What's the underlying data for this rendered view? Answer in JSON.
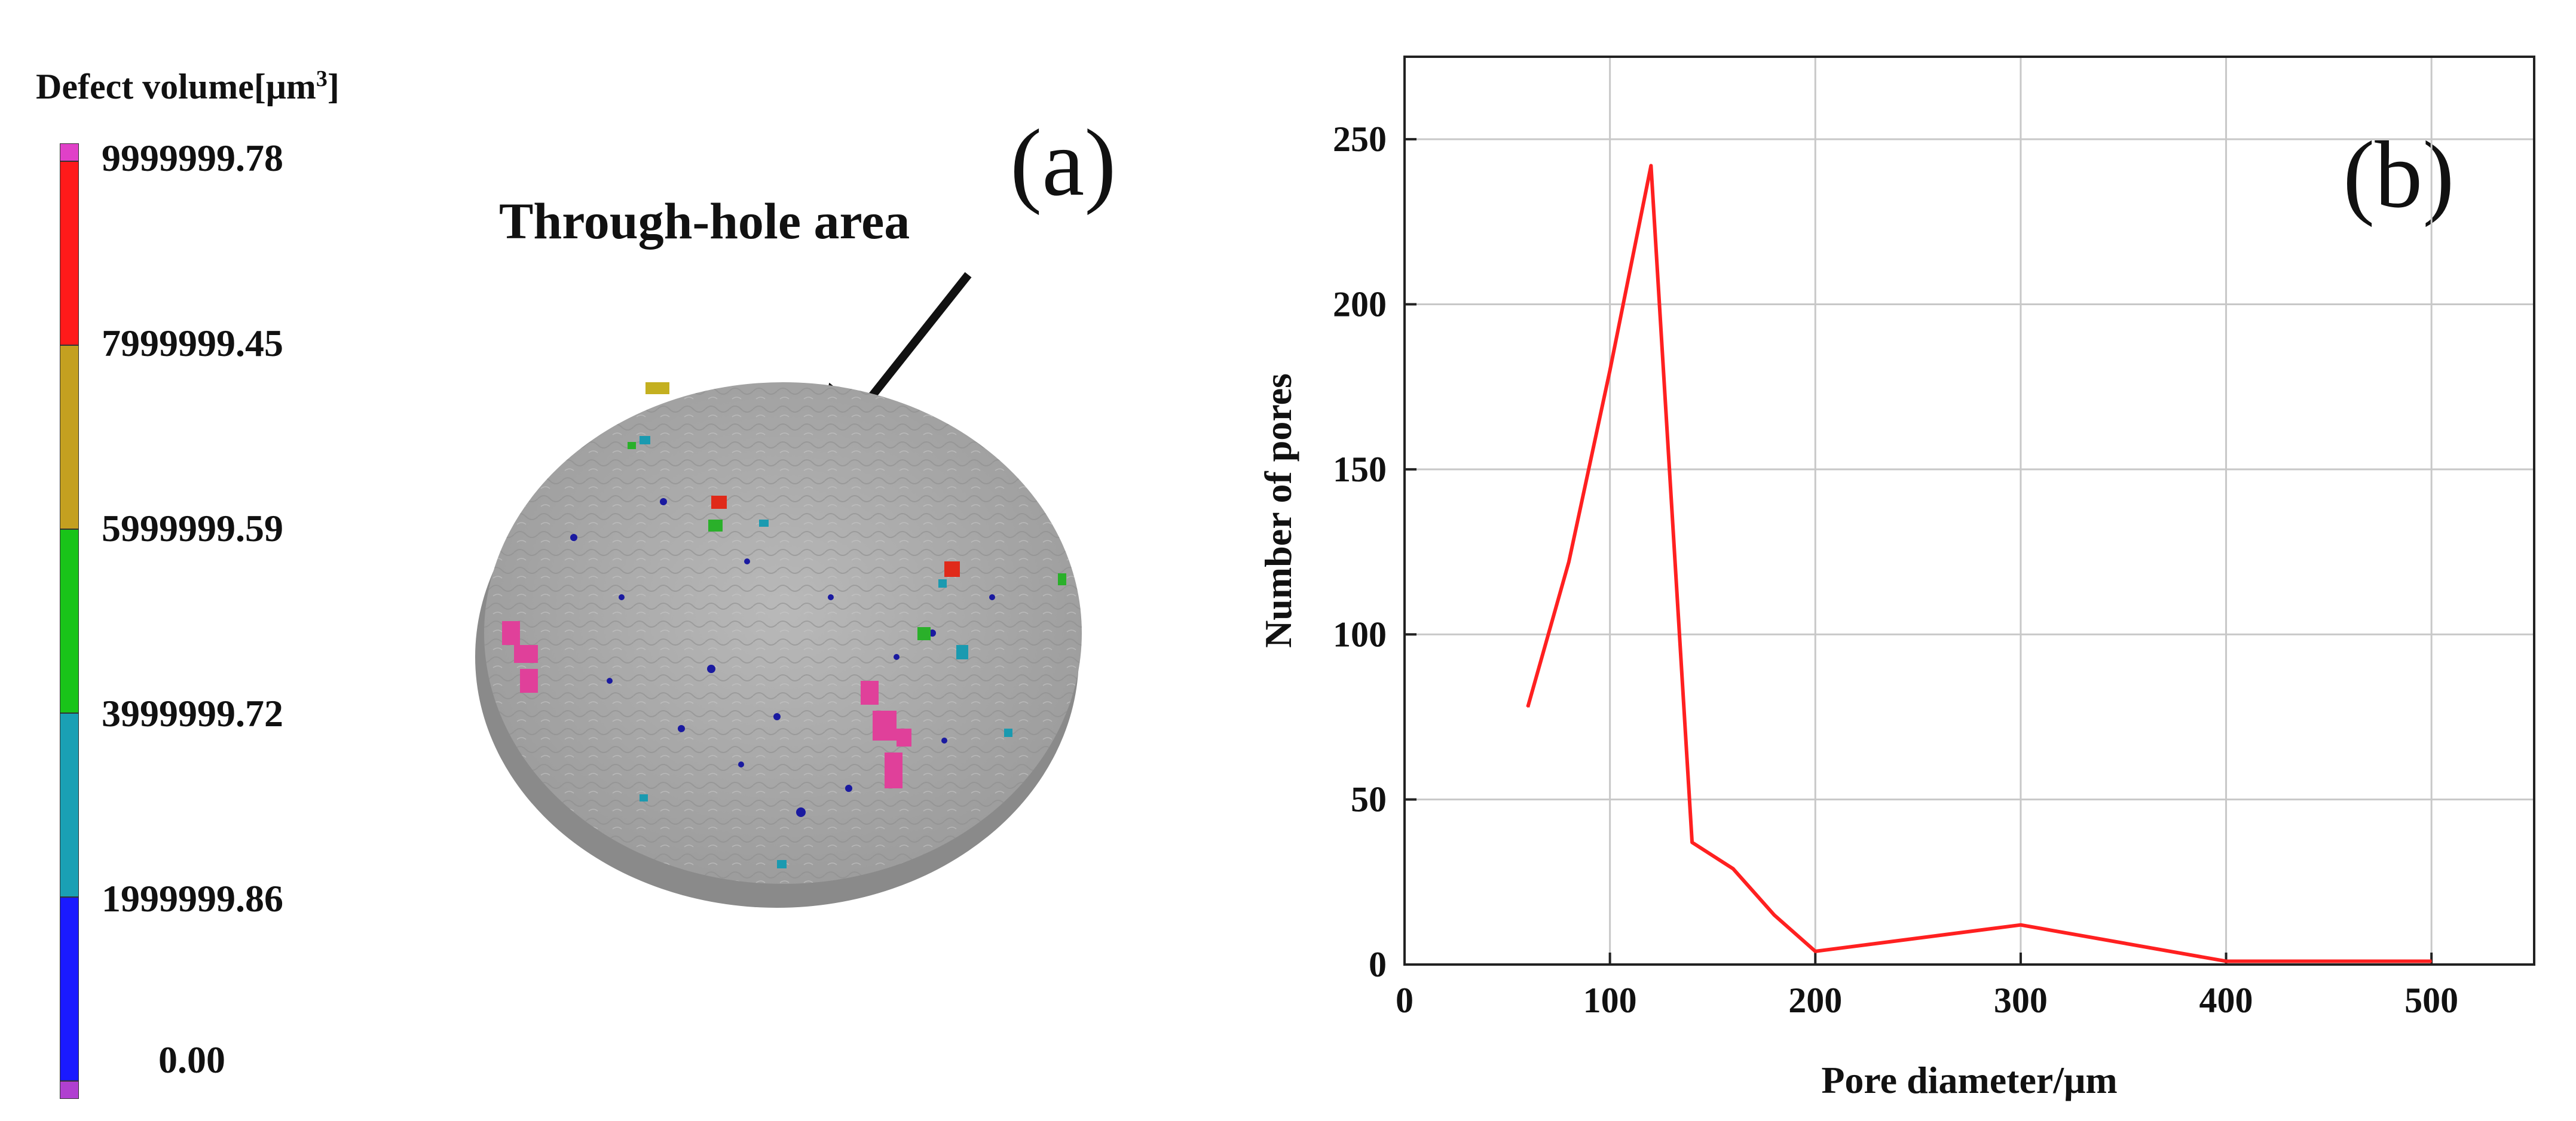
{
  "panel_a": {
    "panel_letter": "(a)",
    "colorbar_title": "Defect volume[μm",
    "colorbar_title_sup": "3",
    "colorbar_title_end": "]",
    "colorbar_labels": [
      "9999999.78",
      "7999999.45",
      "5999999.59",
      "3999999.72",
      "1999999.86",
      "0.00"
    ],
    "colorbar_colors": [
      "#ff1a1a",
      "#c4a020",
      "#19c419",
      "#1aa0b4",
      "#1a1aff"
    ],
    "colorbar_cap_colors": [
      "#e040c8",
      "#b040d0"
    ],
    "annotation": "Through-hole area",
    "specimen_colors": {
      "surface": "#a9a9a9",
      "edge": "#8a8a8a",
      "pore_magenta": "#e0409a",
      "pore_blue": "#1a1aa0",
      "pore_teal": "#1a9ab0",
      "pore_green": "#2ab02a",
      "pore_red": "#e02a1a",
      "pore_yellow": "#c4b020"
    }
  },
  "panel_b": {
    "panel_letter": "(b)"
  },
  "chart_data": {
    "type": "line",
    "title": "",
    "xlabel": "Pore diameter/μm",
    "ylabel": "Number of pores",
    "xlim": [
      0,
      550
    ],
    "ylim": [
      0,
      275
    ],
    "xticks": [
      0,
      100,
      200,
      300,
      400,
      500
    ],
    "yticks": [
      0,
      50,
      100,
      150,
      200,
      250
    ],
    "grid": true,
    "series": [
      {
        "color": "#ff2020",
        "x": [
          60,
          80,
          100,
          120,
          140,
          160,
          180,
          200,
          300,
          400,
          500
        ],
        "y": [
          78,
          122,
          180,
          242,
          37,
          29,
          15,
          4,
          12,
          1,
          1
        ]
      }
    ]
  }
}
